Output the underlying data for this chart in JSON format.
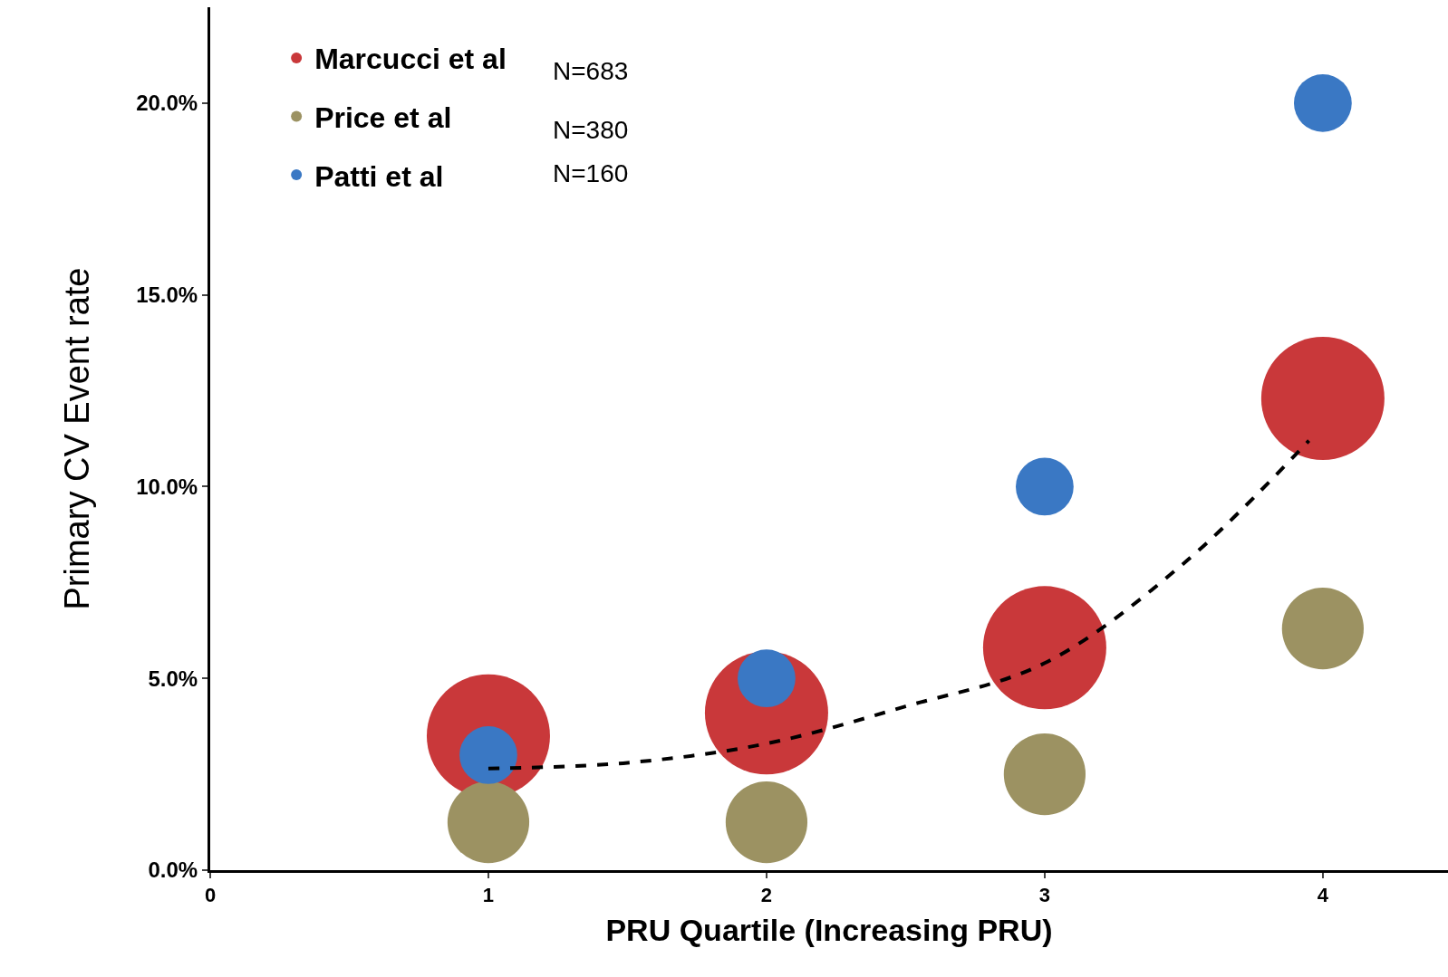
{
  "chart_data": {
    "type": "bubble",
    "xlabel": "PRU Quartile (Increasing PRU)",
    "ylabel": "Primary CV Event rate",
    "x": [
      1,
      2,
      3,
      4
    ],
    "series": [
      {
        "name": "Marcucci et al",
        "color": "#c9383a",
        "values": [
          3.5,
          4.1,
          5.8,
          12.3
        ],
        "sizes": [
          1,
          1,
          1,
          1
        ]
      },
      {
        "name": "Price et al",
        "color": "#9c9262",
        "values": [
          1.25,
          1.25,
          2.5,
          6.3
        ],
        "sizes": [
          0.44,
          0.44,
          0.44,
          0.44
        ]
      },
      {
        "name": "Patti et al",
        "color": "#3a78c4",
        "values": [
          3.0,
          5.0,
          10.0,
          20.0
        ],
        "sizes": [
          0.22,
          0.22,
          0.22,
          0.22
        ]
      },
      {
        "type": "line",
        "color": "#000000",
        "line_style": "dashed",
        "x": [
          1,
          1.5,
          2,
          2.5,
          3,
          3.5,
          3.95
        ],
        "values": [
          2.65,
          2.8,
          3.3,
          4.27,
          5.4,
          8.0,
          11.2
        ]
      }
    ],
    "xlim": [
      0,
      4.45
    ],
    "xticks": [
      0,
      1,
      2,
      3,
      4
    ],
    "ylim": [
      0,
      22.5
    ],
    "yticks": [
      {
        "value": 0,
        "label": "0.0%"
      },
      {
        "value": 5,
        "label": "5.0%"
      },
      {
        "value": 10,
        "label": "10.0%"
      },
      {
        "value": 15,
        "label": "15.0%"
      },
      {
        "value": 20,
        "label": "20.0%"
      }
    ],
    "annotations": [
      "N=683",
      "N=380",
      "N=160"
    ],
    "legend": "top left"
  }
}
